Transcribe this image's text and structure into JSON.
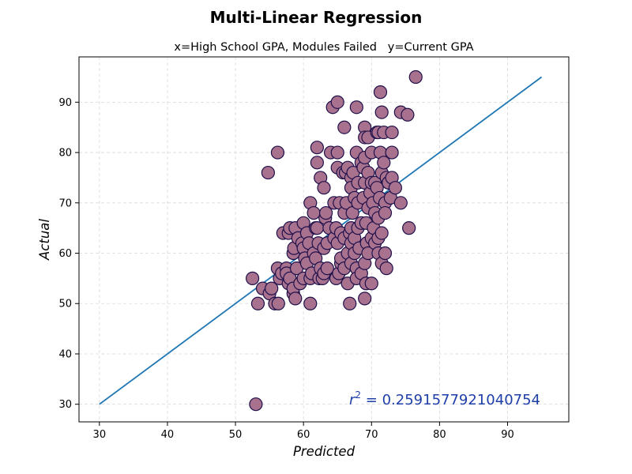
{
  "chart_data": {
    "type": "scatter",
    "title": "Multi-Linear Regression",
    "subtitle": "x=High School GPA, Modules Failed   y=Current GPA",
    "xlabel": "Predicted",
    "ylabel": "Actual",
    "xlim": [
      27,
      99
    ],
    "ylim": [
      26.5,
      99
    ],
    "xticks": [
      30,
      40,
      50,
      60,
      70,
      80,
      90
    ],
    "yticks": [
      30,
      40,
      50,
      60,
      70,
      80,
      90
    ],
    "grid": true,
    "annotation": {
      "r2_prefix": "r",
      "r2_sup": "2",
      "r2_text": " = 0.2591577921040754",
      "color": "#1f3fa8"
    },
    "reference_line": {
      "x": [
        30,
        95
      ],
      "y": [
        30,
        95
      ],
      "color": "#1f77b4"
    },
    "marker": {
      "fill": "#a8728f",
      "edge": "#20104a"
    },
    "points": [
      [
        53.0,
        30
      ],
      [
        52.5,
        55
      ],
      [
        53.3,
        50
      ],
      [
        54.0,
        53
      ],
      [
        54.8,
        76
      ],
      [
        55.0,
        52
      ],
      [
        55.3,
        53
      ],
      [
        55.8,
        50
      ],
      [
        56.2,
        80
      ],
      [
        56.3,
        50
      ],
      [
        56.2,
        57
      ],
      [
        56.5,
        55
      ],
      [
        56.8,
        56
      ],
      [
        57.0,
        64
      ],
      [
        57.5,
        57
      ],
      [
        57.5,
        56
      ],
      [
        57.8,
        54
      ],
      [
        57.8,
        64
      ],
      [
        58.0,
        65
      ],
      [
        58.0,
        55
      ],
      [
        58.5,
        52
      ],
      [
        58.5,
        60
      ],
      [
        58.5,
        53
      ],
      [
        58.6,
        61
      ],
      [
        58.8,
        51
      ],
      [
        58.8,
        65
      ],
      [
        59.0,
        57
      ],
      [
        59.2,
        63
      ],
      [
        59.5,
        54
      ],
      [
        59.8,
        62
      ],
      [
        60.0,
        61
      ],
      [
        60.0,
        66
      ],
      [
        60.0,
        55
      ],
      [
        60.2,
        59
      ],
      [
        60.5,
        58
      ],
      [
        60.5,
        64
      ],
      [
        60.8,
        62
      ],
      [
        61.0,
        50
      ],
      [
        61.0,
        70
      ],
      [
        61.0,
        55
      ],
      [
        61.2,
        56
      ],
      [
        61.5,
        68
      ],
      [
        61.5,
        60
      ],
      [
        61.8,
        65
      ],
      [
        61.8,
        59
      ],
      [
        62.0,
        81
      ],
      [
        62.0,
        78
      ],
      [
        62.0,
        65
      ],
      [
        62.2,
        62
      ],
      [
        62.3,
        55
      ],
      [
        62.5,
        75
      ],
      [
        62.5,
        57
      ],
      [
        62.8,
        55
      ],
      [
        63.0,
        73
      ],
      [
        63.0,
        56
      ],
      [
        63.0,
        61
      ],
      [
        63.2,
        67
      ],
      [
        63.3,
        68
      ],
      [
        63.5,
        57
      ],
      [
        63.5,
        62
      ],
      [
        63.8,
        65
      ],
      [
        64.0,
        80
      ],
      [
        64.3,
        89
      ],
      [
        64.5,
        70
      ],
      [
        64.5,
        63
      ],
      [
        64.8,
        65
      ],
      [
        64.8,
        55
      ],
      [
        65.0,
        90
      ],
      [
        65.0,
        80
      ],
      [
        65.0,
        77
      ],
      [
        65.0,
        62
      ],
      [
        65.2,
        56
      ],
      [
        65.3,
        70
      ],
      [
        65.5,
        58
      ],
      [
        65.5,
        64
      ],
      [
        65.5,
        59
      ],
      [
        65.8,
        76
      ],
      [
        66.0,
        85
      ],
      [
        66.0,
        68
      ],
      [
        66.0,
        63
      ],
      [
        66.0,
        57
      ],
      [
        66.2,
        76
      ],
      [
        66.3,
        70
      ],
      [
        66.5,
        77
      ],
      [
        66.5,
        60
      ],
      [
        66.5,
        54
      ],
      [
        66.8,
        50
      ],
      [
        66.8,
        64
      ],
      [
        67.0,
        75
      ],
      [
        67.0,
        73
      ],
      [
        67.0,
        65
      ],
      [
        67.0,
        62
      ],
      [
        67.0,
        58
      ],
      [
        67.2,
        68
      ],
      [
        67.3,
        76
      ],
      [
        67.5,
        63
      ],
      [
        67.5,
        71
      ],
      [
        67.5,
        60
      ],
      [
        67.8,
        89
      ],
      [
        67.8,
        80
      ],
      [
        67.8,
        57
      ],
      [
        67.8,
        55
      ],
      [
        68.0,
        70
      ],
      [
        68.0,
        74
      ],
      [
        68.0,
        65
      ],
      [
        68.2,
        61
      ],
      [
        68.5,
        78
      ],
      [
        68.5,
        66
      ],
      [
        68.5,
        56
      ],
      [
        68.8,
        77
      ],
      [
        68.8,
        71
      ],
      [
        69.0,
        85
      ],
      [
        69.0,
        83
      ],
      [
        69.0,
        79
      ],
      [
        69.0,
        74
      ],
      [
        69.0,
        58
      ],
      [
        69.0,
        51
      ],
      [
        69.2,
        66
      ],
      [
        69.2,
        54
      ],
      [
        69.3,
        62
      ],
      [
        69.5,
        83
      ],
      [
        69.5,
        76
      ],
      [
        69.5,
        69
      ],
      [
        69.5,
        60
      ],
      [
        69.8,
        72
      ],
      [
        70.0,
        80
      ],
      [
        70.0,
        74
      ],
      [
        70.0,
        63
      ],
      [
        70.0,
        54
      ],
      [
        70.2,
        70
      ],
      [
        70.3,
        65
      ],
      [
        70.5,
        74
      ],
      [
        70.5,
        68
      ],
      [
        70.5,
        62
      ],
      [
        70.8,
        73
      ],
      [
        70.8,
        84
      ],
      [
        71.0,
        63
      ],
      [
        71.0,
        84
      ],
      [
        71.0,
        67
      ],
      [
        71.0,
        60
      ],
      [
        71.2,
        71
      ],
      [
        71.3,
        92
      ],
      [
        71.3,
        80
      ],
      [
        71.5,
        76
      ],
      [
        71.5,
        88
      ],
      [
        71.5,
        64
      ],
      [
        71.5,
        58
      ],
      [
        71.8,
        84
      ],
      [
        71.8,
        78
      ],
      [
        72.0,
        70
      ],
      [
        72.0,
        68
      ],
      [
        72.0,
        60
      ],
      [
        72.2,
        75
      ],
      [
        72.2,
        57
      ],
      [
        72.5,
        74
      ],
      [
        72.5,
        74
      ],
      [
        72.8,
        71
      ],
      [
        73.0,
        80
      ],
      [
        73.0,
        84
      ],
      [
        73.0,
        75
      ],
      [
        73.5,
        73
      ],
      [
        74.3,
        70
      ],
      [
        74.3,
        88
      ],
      [
        75.3,
        87.5
      ],
      [
        75.5,
        65
      ],
      [
        76.5,
        95
      ]
    ]
  }
}
